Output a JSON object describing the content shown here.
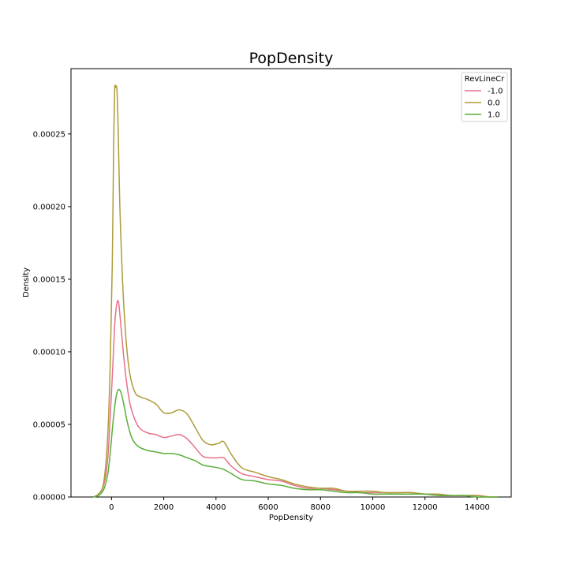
{
  "chart_data": {
    "type": "line",
    "title": "PopDensity",
    "xlabel": "PopDensity",
    "ylabel": "Density",
    "xlim": [
      -1550,
      15300
    ],
    "ylim": [
      0,
      0.000295
    ],
    "xticks": [
      0,
      2000,
      4000,
      6000,
      8000,
      10000,
      12000,
      14000
    ],
    "xtick_labels": [
      "0",
      "2000",
      "4000",
      "6000",
      "8000",
      "10000",
      "12000",
      "14000"
    ],
    "yticks": [
      0,
      5e-05,
      0.0001,
      0.00015,
      0.0002,
      0.00025
    ],
    "ytick_labels": [
      "0.00000",
      "0.00005",
      "0.00010",
      "0.00015",
      "0.00020",
      "0.00025"
    ],
    "grid": false,
    "legend": {
      "title": "RevLineCr",
      "placement": "top-right"
    },
    "series": [
      {
        "name": "-1.0",
        "color": "#e7718a",
        "points": [
          [
            -700,
            0
          ],
          [
            -500,
            2e-06
          ],
          [
            -300,
            8e-06
          ],
          [
            -150,
            2.5e-05
          ],
          [
            -50,
            5.5e-05
          ],
          [
            50,
            9e-05
          ],
          [
            120,
            0.000118
          ],
          [
            180,
            0.00013
          ],
          [
            230,
            0.000135
          ],
          [
            280,
            0.000133
          ],
          [
            350,
            0.00012
          ],
          [
            450,
            0.0001
          ],
          [
            550,
            8.3e-05
          ],
          [
            700,
            6.5e-05
          ],
          [
            900,
            5.3e-05
          ],
          [
            1100,
            4.7e-05
          ],
          [
            1400,
            4.4e-05
          ],
          [
            1700,
            4.3e-05
          ],
          [
            2000,
            4.1e-05
          ],
          [
            2300,
            4.2e-05
          ],
          [
            2600,
            4.3e-05
          ],
          [
            2900,
            4e-05
          ],
          [
            3200,
            3.4e-05
          ],
          [
            3500,
            2.8e-05
          ],
          [
            3800,
            2.7e-05
          ],
          [
            4100,
            2.7e-05
          ],
          [
            4300,
            2.7e-05
          ],
          [
            4600,
            2.1e-05
          ],
          [
            5000,
            1.6e-05
          ],
          [
            5500,
            1.4e-05
          ],
          [
            6000,
            1.2e-05
          ],
          [
            6500,
            1.1e-05
          ],
          [
            7000,
            8e-06
          ],
          [
            7500,
            6e-06
          ],
          [
            8000,
            6e-06
          ],
          [
            8500,
            5e-06
          ],
          [
            9000,
            4e-06
          ],
          [
            9500,
            3e-06
          ],
          [
            10000,
            3e-06
          ],
          [
            10500,
            3e-06
          ],
          [
            11000,
            3e-06
          ],
          [
            11500,
            3e-06
          ],
          [
            12000,
            2e-06
          ],
          [
            12500,
            2e-06
          ],
          [
            13000,
            1e-06
          ],
          [
            13500,
            1e-06
          ],
          [
            14000,
            1e-06
          ],
          [
            14500,
            0
          ],
          [
            14800,
            0
          ]
        ]
      },
      {
        "name": "0.0",
        "color": "#ad9b3a",
        "points": [
          [
            -700,
            0
          ],
          [
            -500,
            2e-06
          ],
          [
            -300,
            1e-05
          ],
          [
            -150,
            4e-05
          ],
          [
            -50,
            9e-05
          ],
          [
            30,
            0.00016
          ],
          [
            80,
            0.00024
          ],
          [
            120,
            0.00028
          ],
          [
            160,
            0.000282
          ],
          [
            210,
            0.00028
          ],
          [
            260,
            0.00025
          ],
          [
            320,
            0.0002
          ],
          [
            420,
            0.00015
          ],
          [
            550,
            0.00011
          ],
          [
            700,
            8.5e-05
          ],
          [
            900,
            7.2e-05
          ],
          [
            1100,
            6.9e-05
          ],
          [
            1400,
            6.7e-05
          ],
          [
            1700,
            6.4e-05
          ],
          [
            2000,
            5.8e-05
          ],
          [
            2300,
            5.8e-05
          ],
          [
            2600,
            6e-05
          ],
          [
            2900,
            5.7e-05
          ],
          [
            3200,
            4.8e-05
          ],
          [
            3500,
            3.9e-05
          ],
          [
            3800,
            3.6e-05
          ],
          [
            4100,
            3.7e-05
          ],
          [
            4300,
            3.8e-05
          ],
          [
            4600,
            2.9e-05
          ],
          [
            5000,
            2e-05
          ],
          [
            5500,
            1.7e-05
          ],
          [
            6000,
            1.4e-05
          ],
          [
            6500,
            1.2e-05
          ],
          [
            7000,
            9e-06
          ],
          [
            7500,
            7e-06
          ],
          [
            8000,
            6e-06
          ],
          [
            8500,
            6e-06
          ],
          [
            9000,
            4e-06
          ],
          [
            9500,
            4e-06
          ],
          [
            10000,
            4e-06
          ],
          [
            10500,
            3e-06
          ],
          [
            11000,
            3e-06
          ],
          [
            11500,
            3e-06
          ],
          [
            12000,
            2e-06
          ],
          [
            12500,
            2e-06
          ],
          [
            13000,
            1e-06
          ],
          [
            13500,
            1e-06
          ],
          [
            14000,
            1e-06
          ],
          [
            14500,
            0
          ],
          [
            14800,
            0
          ]
        ]
      },
      {
        "name": "1.0",
        "color": "#59ae3a",
        "points": [
          [
            -700,
            0
          ],
          [
            -500,
            1e-06
          ],
          [
            -300,
            5e-06
          ],
          [
            -150,
            1.5e-05
          ],
          [
            -50,
            3e-05
          ],
          [
            50,
            5e-05
          ],
          [
            150,
            6.6e-05
          ],
          [
            230,
            7.3e-05
          ],
          [
            300,
            7.4e-05
          ],
          [
            380,
            7.1e-05
          ],
          [
            480,
            6.3e-05
          ],
          [
            600,
            5.2e-05
          ],
          [
            750,
            4.2e-05
          ],
          [
            900,
            3.7e-05
          ],
          [
            1100,
            3.4e-05
          ],
          [
            1400,
            3.2e-05
          ],
          [
            1700,
            3.1e-05
          ],
          [
            2000,
            3e-05
          ],
          [
            2300,
            3e-05
          ],
          [
            2600,
            2.9e-05
          ],
          [
            2900,
            2.7e-05
          ],
          [
            3200,
            2.5e-05
          ],
          [
            3500,
            2.2e-05
          ],
          [
            3800,
            2.1e-05
          ],
          [
            4100,
            2e-05
          ],
          [
            4300,
            1.9e-05
          ],
          [
            4600,
            1.6e-05
          ],
          [
            5000,
            1.2e-05
          ],
          [
            5500,
            1.1e-05
          ],
          [
            6000,
            9e-06
          ],
          [
            6500,
            8e-06
          ],
          [
            7000,
            6e-06
          ],
          [
            7500,
            5e-06
          ],
          [
            8000,
            5e-06
          ],
          [
            8500,
            4e-06
          ],
          [
            9000,
            3e-06
          ],
          [
            9500,
            3e-06
          ],
          [
            10000,
            2e-06
          ],
          [
            10500,
            2e-06
          ],
          [
            11000,
            2e-06
          ],
          [
            11500,
            2e-06
          ],
          [
            12000,
            2e-06
          ],
          [
            12500,
            1e-06
          ],
          [
            13000,
            1e-06
          ],
          [
            13500,
            1e-06
          ],
          [
            14000,
            0
          ],
          [
            14500,
            0
          ],
          [
            14800,
            0
          ]
        ]
      }
    ]
  }
}
